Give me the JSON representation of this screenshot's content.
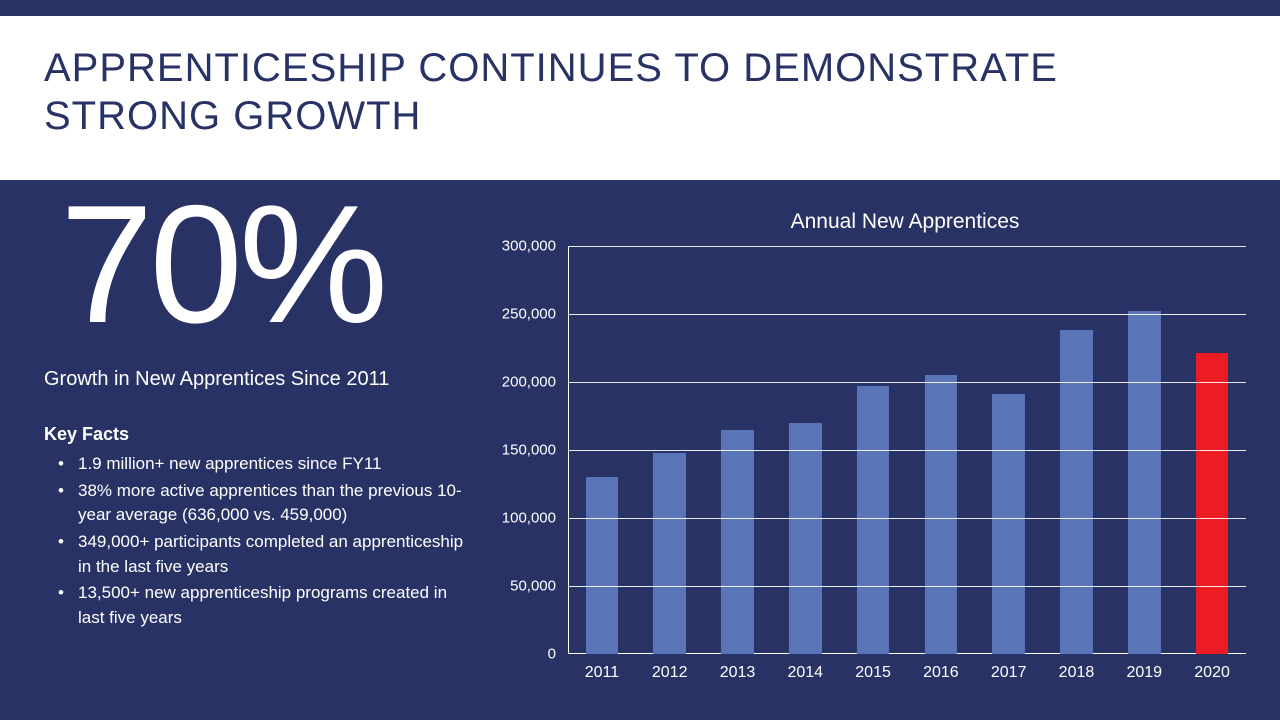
{
  "title": "APPRENTICESHIP CONTINUES TO DEMONSTRATE STRONG GROWTH",
  "big_percent": "70%",
  "percent_caption": "Growth in New Apprentices Since 2011",
  "key_facts_heading": "Key Facts",
  "key_facts": [
    "1.9 million+ new apprentices since FY11",
    "38% more active apprentices than the previous 10-year average (636,000 vs. 459,000)",
    "349,000+ participants completed an apprenticeship in the last five years",
    "13,500+ new apprenticeship programs created in last five years"
  ],
  "chart": {
    "type": "bar",
    "title": "Annual New Apprentices",
    "categories": [
      "2011",
      "2012",
      "2013",
      "2014",
      "2015",
      "2016",
      "2017",
      "2018",
      "2019",
      "2020"
    ],
    "values": [
      130000,
      148000,
      165000,
      170000,
      197000,
      205000,
      191000,
      238000,
      252000,
      221000
    ],
    "bar_colors": [
      "#5a74b8",
      "#5a74b8",
      "#5a74b8",
      "#5a74b8",
      "#5a74b8",
      "#5a74b8",
      "#5a74b8",
      "#5a74b8",
      "#5a74b8",
      "#ed1c24"
    ],
    "ylim": [
      0,
      300000
    ],
    "ytick_step": 50000,
    "ytick_labels": [
      "0",
      "50,000",
      "100,000",
      "150,000",
      "200,000",
      "250,000",
      "300,000"
    ],
    "grid_color": "#ffffff",
    "background_color": "#283265",
    "title_fontsize": 21,
    "label_fontsize": 16,
    "bar_width": 0.48
  },
  "colors": {
    "slide_bg": "#283265",
    "title_band_bg": "#ffffff",
    "title_text": "#283265",
    "body_text": "#ffffff"
  }
}
